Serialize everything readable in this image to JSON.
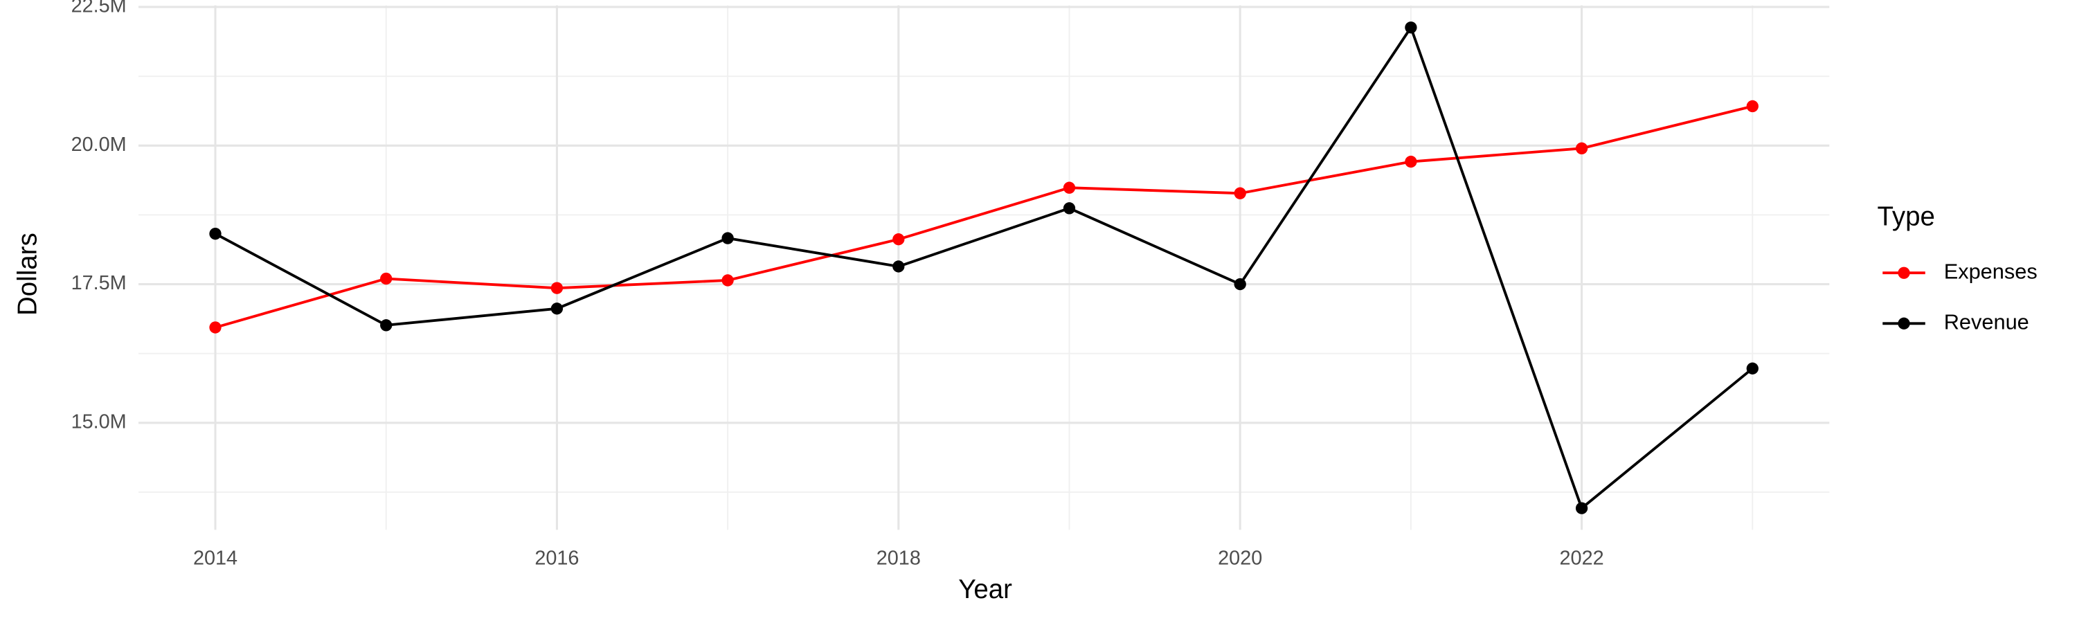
{
  "chart_data": {
    "type": "line",
    "x_label": "Year",
    "y_label": "Dollars",
    "x": [
      2014,
      2015,
      2016,
      2017,
      2018,
      2019,
      2020,
      2021,
      2022,
      2023
    ],
    "series": [
      {
        "name": "Expenses",
        "color": "#ff0000",
        "values": [
          16720000,
          17600000,
          17430000,
          17570000,
          18310000,
          19240000,
          19140000,
          19710000,
          19950000,
          20710000
        ]
      },
      {
        "name": "Revenue",
        "color": "#000000",
        "values": [
          18410000,
          16760000,
          17060000,
          18330000,
          17820000,
          18870000,
          17500000,
          22130000,
          13460000,
          15980000
        ]
      }
    ],
    "xlim": [
      2013.55,
      2023.45
    ],
    "xticks": [
      2014,
      2016,
      2018,
      2020,
      2022
    ],
    "ylim": [
      13070000,
      22530000
    ],
    "yticks": [
      {
        "value": 15000000,
        "label": "15.0M"
      },
      {
        "value": 17500000,
        "label": "17.5M"
      },
      {
        "value": 20000000,
        "label": "20.0M"
      },
      {
        "value": 22500000,
        "label": "22.5M"
      }
    ],
    "grid": true,
    "legend_title": "Type",
    "legend_position": "right"
  }
}
